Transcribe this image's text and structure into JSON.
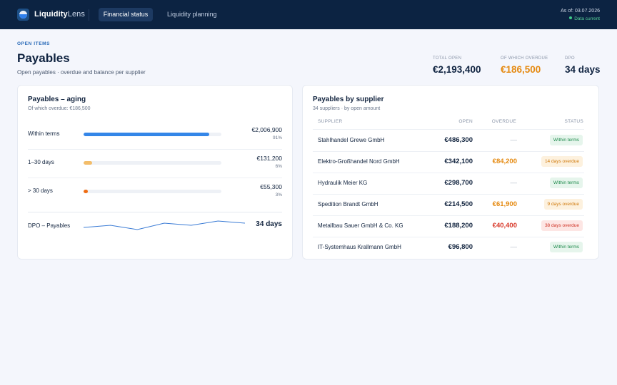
{
  "app": {
    "brand_bold": "Liquidity",
    "brand_light": "Lens",
    "nav": [
      "Financial status",
      "Liquidity planning"
    ],
    "as_of": "As of: 03.07.2026",
    "data_status": "Data current"
  },
  "header": {
    "eyebrow": "OPEN ITEMS",
    "title": "Payables",
    "subtitle": "Open payables · overdue and balance per supplier",
    "kpis": [
      {
        "label": "TOTAL OPEN",
        "value": "€2,193,400",
        "color": "#0f2340"
      },
      {
        "label": "OF WHICH OVERDUE",
        "value": "€186,500",
        "color": "#e58a11"
      },
      {
        "label": "DPO",
        "value": "34 days",
        "color": "#0f2340"
      }
    ]
  },
  "aging": {
    "title": "Payables – aging",
    "subtitle": "Of which overdue: €186,500",
    "rows": [
      {
        "label": "Within terms",
        "amount": "€2,006,900",
        "pct": "91%",
        "share": 0.91,
        "color": "#3486e8"
      },
      {
        "label": "1–30 days",
        "amount": "€131,200",
        "pct": "6%",
        "share": 0.06,
        "color": "#f3bd6a"
      },
      {
        "label": "> 30 days",
        "amount": "€55,300",
        "pct": "3%",
        "share": 0.03,
        "color": "#ef6c12"
      }
    ],
    "dpo_label": "DPO – Payables",
    "dpo_value": "34 days",
    "dpo_trend": [
      34,
      35,
      33,
      36,
      35,
      37,
      36
    ],
    "dpo_color": "#3a7bd5"
  },
  "suppliers": {
    "title": "Payables by supplier",
    "subtitle": "34 suppliers · by open amount",
    "columns": {
      "supplier": "SUPPLIER",
      "open": "OPEN",
      "overdue": "OVERDUE",
      "status": "STATUS"
    },
    "rows": [
      {
        "name": "Stahlhandel Grewe GmbH",
        "open": "€486,300",
        "overdue": "—",
        "overdue_kind": "dash",
        "status": "Within terms",
        "status_kind": "ok"
      },
      {
        "name": "Elektro-Großhandel Nord GmbH",
        "open": "€342,100",
        "overdue": "€84,200",
        "overdue_kind": "orange",
        "status": "14 days overdue",
        "status_kind": "warn"
      },
      {
        "name": "Hydraulik Meier KG",
        "open": "€298,700",
        "overdue": "—",
        "overdue_kind": "dash",
        "status": "Within terms",
        "status_kind": "ok"
      },
      {
        "name": "Spedition Brandt GmbH",
        "open": "€214,500",
        "overdue": "€61,900",
        "overdue_kind": "orange",
        "status": "9 days overdue",
        "status_kind": "warn"
      },
      {
        "name": "Metallbau Sauer GmbH & Co. KG",
        "open": "€188,200",
        "overdue": "€40,400",
        "overdue_kind": "red",
        "status": "38 days overdue",
        "status_kind": "crit"
      },
      {
        "name": "IT-Systemhaus Krallmann GmbH",
        "open": "€96,800",
        "overdue": "—",
        "overdue_kind": "dash",
        "status": "Within terms",
        "status_kind": "ok"
      }
    ]
  }
}
